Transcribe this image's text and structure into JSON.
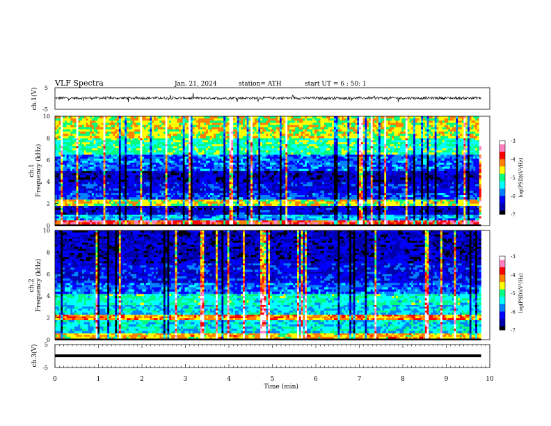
{
  "header": {
    "title": "VLF  Spectra",
    "date": "Jan. 21, 2024",
    "station": "station= ATH",
    "start_ut": "start  UT  =   6  : 50: 1"
  },
  "colors": {
    "cmap": [
      "#000000",
      "#0000aa",
      "#0000ff",
      "#0080ff",
      "#00ffff",
      "#00ff80",
      "#ffff00",
      "#ff8000",
      "#ff0000",
      "#ff80c0",
      "#ffffff"
    ],
    "trace": "#000000",
    "flat_trace": "#000000"
  },
  "chart_data": [
    {
      "type": "line",
      "panel": "ch1-waveform",
      "ylabel": "ch.1(V)",
      "ylim": [
        -5,
        5
      ],
      "yticks": [
        "5",
        "-5"
      ],
      "x_range_min": [
        0,
        9.8
      ],
      "series": [
        {
          "description": "noisy trace centered slightly above 0 V",
          "mean": 0.2,
          "noise_amplitude": 1.2
        }
      ]
    },
    {
      "type": "heatmap",
      "panel": "ch1-spectrogram",
      "ylabel": "ch.1\nFrequency  (kHz)",
      "ylim": [
        0,
        10
      ],
      "yticks": [
        "0",
        "2",
        "4",
        "6",
        "8",
        "10"
      ],
      "x_range_min": [
        0,
        9.8
      ],
      "colorbar": {
        "label": "log(PSD)(V²/Hz)",
        "range": [
          -7,
          -3
        ],
        "ticks": [
          "-3",
          "-4",
          "-5",
          "-6",
          "-7"
        ]
      },
      "bands_khz": [
        {
          "f": [
            0.1,
            0.5
          ],
          "level": -3.8
        },
        {
          "f": [
            0.5,
            1.0
          ],
          "level": -5.6
        },
        {
          "f": [
            1.0,
            1.8
          ],
          "level": -6.4
        },
        {
          "f": [
            1.8,
            2.4
          ],
          "level": -4.6
        },
        {
          "f": [
            2.4,
            3.0
          ],
          "level": -6.0
        },
        {
          "f": [
            3.0,
            4.0
          ],
          "level": -6.3
        },
        {
          "f": [
            4.0,
            5.0
          ],
          "level": -6.5
        },
        {
          "f": [
            5.0,
            6.5
          ],
          "level": -5.9
        },
        {
          "f": [
            6.5,
            8.0
          ],
          "level": -5.1
        },
        {
          "f": [
            8.0,
            10.0
          ],
          "level": -4.6
        }
      ]
    },
    {
      "type": "heatmap",
      "panel": "ch2-spectrogram",
      "ylabel": "ch.2\nFrequency  (kHz)",
      "ylim": [
        0,
        10
      ],
      "yticks": [
        "0",
        "2",
        "4",
        "6",
        "8",
        "10"
      ],
      "x_range_min": [
        0,
        9.8
      ],
      "colorbar": {
        "label": "log(PSD)(V²/Hz)",
        "range": [
          -7,
          -3
        ],
        "ticks": [
          "-3",
          "-4",
          "-5",
          "-6",
          "-7"
        ]
      },
      "bands_khz": [
        {
          "f": [
            0.1,
            0.6
          ],
          "level": -4.4
        },
        {
          "f": [
            0.6,
            1.8
          ],
          "level": -5.4
        },
        {
          "f": [
            1.8,
            2.3
          ],
          "level": -4.2
        },
        {
          "f": [
            2.3,
            3.2
          ],
          "level": -5.5
        },
        {
          "f": [
            3.2,
            4.2
          ],
          "level": -5.2
        },
        {
          "f": [
            4.2,
            5.2
          ],
          "level": -5.9
        },
        {
          "f": [
            5.2,
            7.0
          ],
          "level": -6.3
        },
        {
          "f": [
            7.0,
            10.0
          ],
          "level": -6.5
        }
      ]
    },
    {
      "type": "line",
      "panel": "ch3-waveform",
      "ylabel": "ch.3(V)",
      "ylim": [
        -5,
        5
      ],
      "yticks": [
        "5",
        "-5"
      ],
      "xlabel": "Time  (min)",
      "xticks": [
        "0",
        "1",
        "2",
        "3",
        "4",
        "5",
        "6",
        "7",
        "8",
        "9",
        "10"
      ],
      "x_range_min": [
        0,
        9.8
      ],
      "series": [
        {
          "description": "flat line",
          "value": 0.1
        }
      ]
    }
  ]
}
